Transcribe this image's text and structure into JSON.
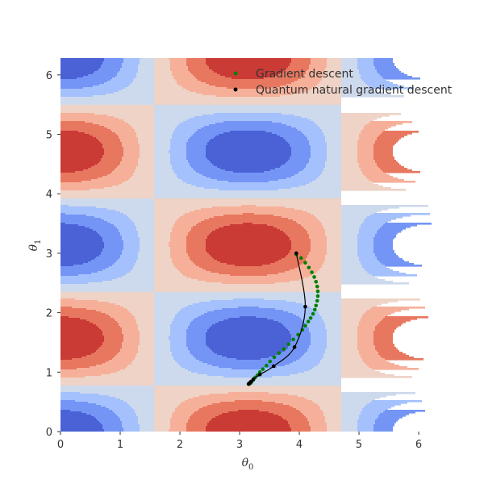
{
  "chart_data": {
    "type": "contour",
    "xlabel": "θ0",
    "ylabel": "θ1",
    "x_label_parts": {
      "base": "θ",
      "sub": "0"
    },
    "y_label_parts": {
      "base": "θ",
      "sub": "1"
    },
    "xlim": [
      0,
      6.283
    ],
    "ylim": [
      0,
      6.283
    ],
    "xticks": [
      0,
      1,
      2,
      3,
      4,
      5,
      6
    ],
    "yticks": [
      0,
      1,
      2,
      3,
      4,
      5,
      6
    ],
    "grid": false,
    "legend_position": "top-right",
    "colormap": "coolwarm",
    "levels": [
      -1,
      -0.75,
      -0.5,
      -0.25,
      0,
      0.25,
      0.5,
      0.75,
      1
    ],
    "level_colors": [
      "#4a62d6",
      "#7495f5",
      "#a4c1fd",
      "#cdd9ec",
      "#eed3c6",
      "#f6b09a",
      "#e8775f",
      "#ca3b36"
    ],
    "series": [
      {
        "name": "Gradient descent",
        "color": "#008000",
        "style": "markers",
        "x": [
          3.95,
          4.03,
          4.1,
          4.16,
          4.21,
          4.25,
          4.28,
          4.3,
          4.31,
          4.31,
          4.3,
          4.28,
          4.26,
          4.23,
          4.19,
          4.15,
          4.1,
          4.05,
          3.98,
          3.9,
          3.82,
          3.74,
          3.66,
          3.58,
          3.51,
          3.45,
          3.39,
          3.34,
          3.3,
          3.26,
          3.23,
          3.2,
          3.19,
          3.17,
          3.16,
          3.16
        ],
        "y": [
          2.98,
          2.92,
          2.84,
          2.76,
          2.68,
          2.6,
          2.52,
          2.44,
          2.36,
          2.28,
          2.2,
          2.12,
          2.05,
          1.98,
          1.91,
          1.85,
          1.78,
          1.71,
          1.63,
          1.55,
          1.47,
          1.39,
          1.32,
          1.25,
          1.18,
          1.11,
          1.05,
          1.0,
          0.95,
          0.91,
          0.87,
          0.84,
          0.82,
          0.81,
          0.8,
          0.8
        ]
      },
      {
        "name": "Quantum natural gradient descent",
        "color": "#000000",
        "style": "line+markers",
        "x": [
          3.95,
          4.1,
          3.92,
          3.57,
          3.34,
          3.23,
          3.19,
          3.17,
          3.16,
          3.15
        ],
        "y": [
          3.0,
          2.1,
          1.42,
          1.1,
          0.96,
          0.88,
          0.84,
          0.82,
          0.81,
          0.8
        ]
      }
    ]
  }
}
